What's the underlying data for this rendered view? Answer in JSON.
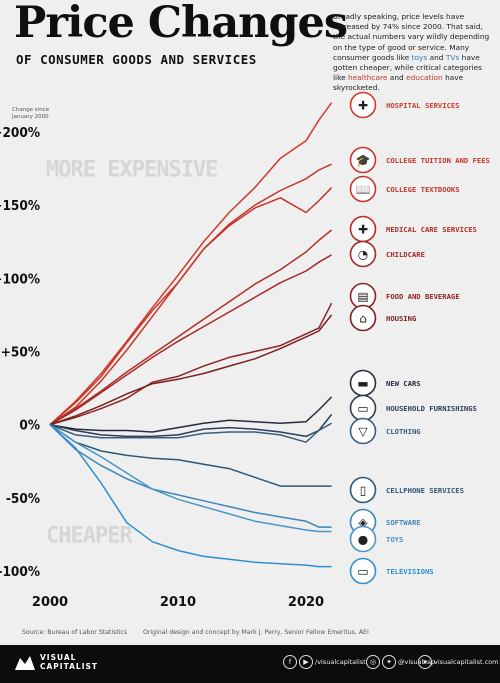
{
  "header": {
    "title": "Price Changes",
    "subtitle": "OF CONSUMER GOODS AND SERVICES",
    "intro_parts": [
      {
        "text": "Broadly speaking, price levels have increased by 74% since 2000. That said, the actual numbers vary wildly depending on the type of good or service. Many consumer goods like ",
        "style": ""
      },
      {
        "text": "toys",
        "style": "blue"
      },
      {
        "text": " and ",
        "style": ""
      },
      {
        "text": "TVs",
        "style": "blue"
      },
      {
        "text": " have gotten cheaper, while critical categories like ",
        "style": ""
      },
      {
        "text": "healthcare",
        "style": "red"
      },
      {
        "text": " and ",
        "style": ""
      },
      {
        "text": "education",
        "style": "red"
      },
      {
        "text": " have skyrocketed.",
        "style": ""
      }
    ]
  },
  "chart_data": {
    "type": "line",
    "ylabel": "Change since January 2000",
    "ylabel_lines": [
      "Change since",
      "January 2000"
    ],
    "xlim": [
      2000,
      2022.5
    ],
    "ylim": [
      -100,
      200
    ],
    "x_ticks": [
      2000,
      2010,
      2020
    ],
    "x_tick_labels": [
      "2000",
      "2010",
      "2020"
    ],
    "y_ticks": [
      200,
      150,
      100,
      50,
      0,
      -50,
      -100
    ],
    "y_tick_labels": [
      "+200%",
      "+150%",
      "+100%",
      "+50%",
      "0%",
      "-50%",
      "-100%"
    ],
    "annotations": [
      "MORE EXPENSIVE",
      "CHEAPER"
    ],
    "grid": false,
    "x": [
      2000,
      2002,
      2004,
      2006,
      2008,
      2010,
      2012,
      2014,
      2016,
      2018,
      2020,
      2021,
      2022
    ],
    "series": [
      {
        "name": "HOSPITAL SERVICES",
        "color": "#d13a2a",
        "icon": "hospital-icon",
        "values": [
          0,
          16,
          35,
          57,
          80,
          102,
          125,
          145,
          162,
          182,
          194,
          208,
          220
        ]
      },
      {
        "name": "COLLEGE TUITION AND FEES",
        "color": "#c73428",
        "icon": "graduation-cap-icon",
        "values": [
          0,
          15,
          33,
          56,
          78,
          97,
          120,
          137,
          150,
          160,
          168,
          174,
          178
        ]
      },
      {
        "name": "COLLEGE TEXTBOOKS",
        "color": "#c73428",
        "icon": "book-icon",
        "values": [
          0,
          12,
          30,
          51,
          74,
          97,
          120,
          136,
          148,
          155,
          145,
          153,
          162
        ]
      },
      {
        "name": "MEDICAL CARE SERVICES",
        "color": "#b22d26",
        "icon": "medical-kit-icon",
        "values": [
          0,
          11,
          23,
          36,
          48,
          60,
          72,
          84,
          96,
          106,
          118,
          126,
          133
        ]
      },
      {
        "name": "CHILDCARE",
        "color": "#a5282a",
        "icon": "stroller-icon",
        "values": [
          0,
          10,
          22,
          34,
          46,
          57,
          67,
          77,
          87,
          97,
          105,
          111,
          116
        ]
      },
      {
        "name": "FOOD AND BEVERAGE",
        "color": "#8e2424",
        "icon": "groceries-icon",
        "values": [
          0,
          5,
          11,
          18,
          29,
          33,
          40,
          46,
          50,
          54,
          62,
          66,
          83
        ]
      },
      {
        "name": "HOUSING",
        "color": "#7a2122",
        "icon": "house-icon",
        "values": [
          0,
          6,
          13,
          21,
          28,
          31,
          35,
          40,
          45,
          52,
          60,
          64,
          75
        ]
      },
      {
        "name": "NEW CARS",
        "color": "#262d3e",
        "icon": "car-icon",
        "values": [
          0,
          -3,
          -4,
          -4,
          -5,
          -2,
          1,
          3,
          2,
          1,
          2,
          10,
          19
        ]
      },
      {
        "name": "HOUSEHOLD FURNISHINGS",
        "color": "#2d3e58",
        "icon": "sofa-icon",
        "values": [
          0,
          -4,
          -7,
          -8,
          -8,
          -7,
          -3,
          -2,
          -3,
          -5,
          -8,
          -4,
          7
        ]
      },
      {
        "name": "CLOTHING",
        "color": "#3a5d80",
        "icon": "shirt-icon",
        "values": [
          0,
          -7,
          -9,
          -9,
          -9,
          -9,
          -6,
          -5,
          -5,
          -7,
          -12,
          -4,
          1
        ]
      },
      {
        "name": "CELLPHONE SERVICES",
        "color": "#2d5778",
        "icon": "cellphone-icon",
        "values": [
          0,
          -12,
          -18,
          -21,
          -23,
          -24,
          -27,
          -30,
          -36,
          -42,
          -42,
          -42,
          -42
        ]
      },
      {
        "name": "SOFTWARE",
        "color": "#3f86b4",
        "icon": "software-icon",
        "values": [
          0,
          -17,
          -28,
          -37,
          -44,
          -48,
          -52,
          -56,
          -60,
          -63,
          -66,
          -70,
          -70
        ]
      },
      {
        "name": "TOYS",
        "color": "#4a96c6",
        "icon": "teddy-bear-icon",
        "values": [
          0,
          -12,
          -22,
          -33,
          -44,
          -51,
          -56,
          -61,
          -66,
          -69,
          -72,
          -73,
          -73
        ]
      },
      {
        "name": "TELEVISIONS",
        "color": "#2f8fcf",
        "icon": "television-icon",
        "values": [
          0,
          -16,
          -40,
          -67,
          -80,
          -86,
          -90,
          -92,
          -94,
          -95,
          -96,
          -97,
          -97
        ]
      }
    ]
  },
  "footer": {
    "source": "Source: Bureau of Labor Statistics",
    "credit": "Original design and concept by Mark J. Perry, Senior Fellow Emeritus, AEI",
    "brand_line1": "VISUAL",
    "brand_line2": "CAPITALIST",
    "social1": "/visualcapitalist",
    "social2": "@visualcap",
    "social3": "visualcapitalist.com"
  }
}
